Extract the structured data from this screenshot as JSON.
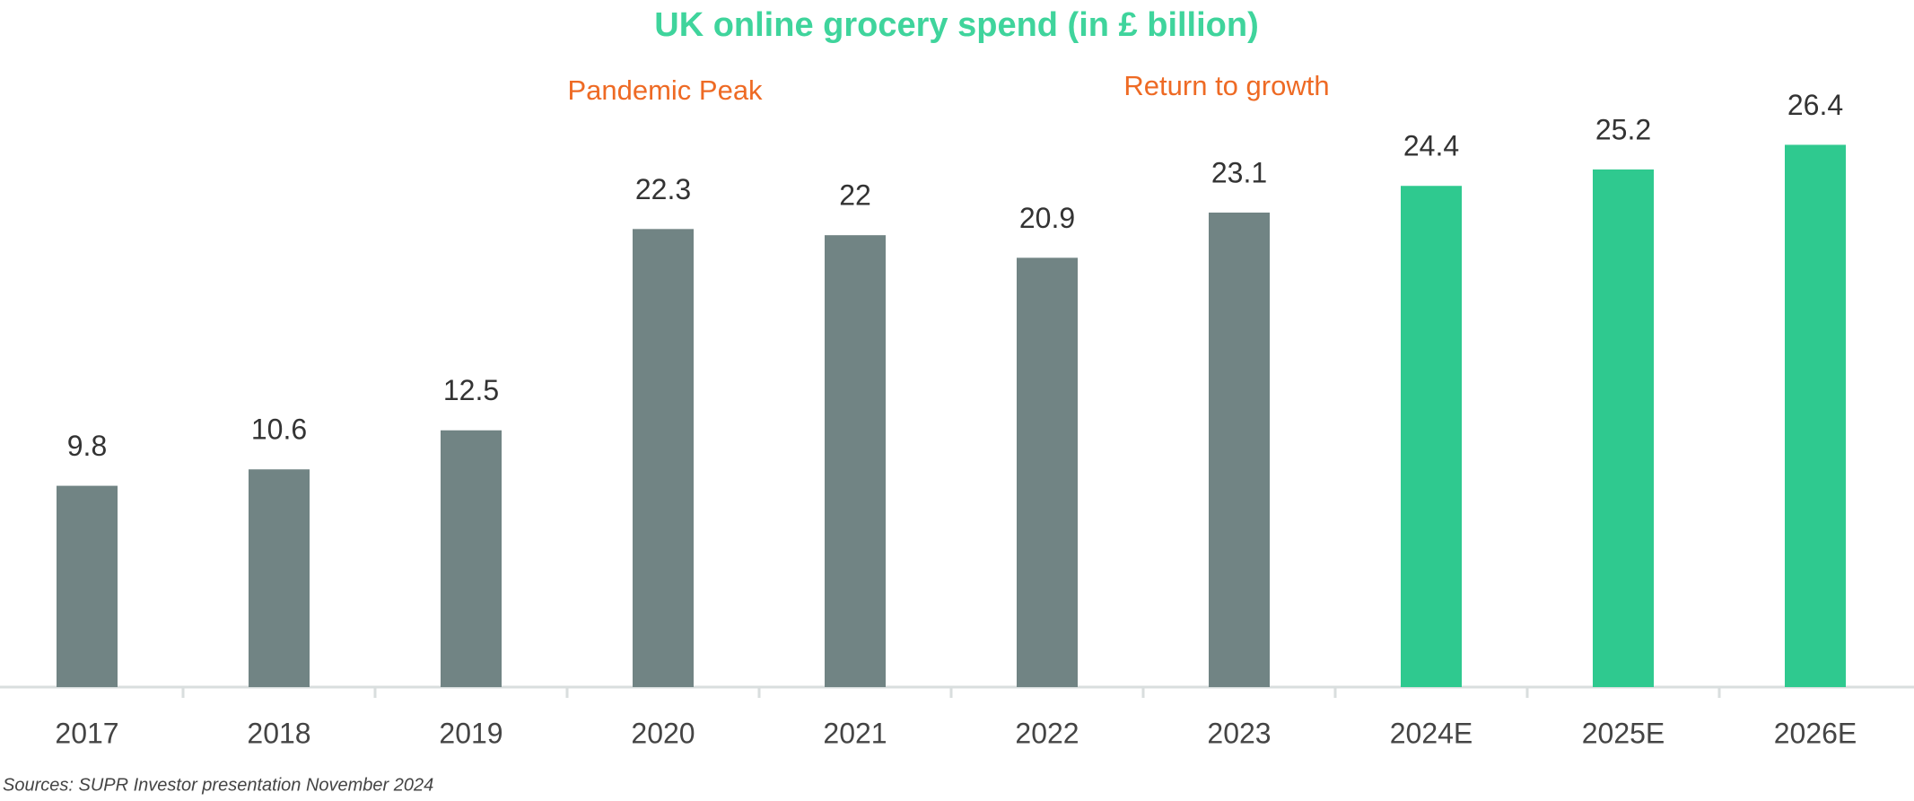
{
  "chart_data": {
    "type": "bar",
    "title": "UK online grocery spend (in £ billion)",
    "categories": [
      "2017",
      "2018",
      "2019",
      "2020",
      "2021",
      "2022",
      "2023",
      "2024E",
      "2025E",
      "2026E"
    ],
    "values": [
      9.8,
      10.6,
      12.5,
      22.3,
      22,
      20.9,
      23.1,
      24.4,
      25.2,
      26.4
    ],
    "colors": [
      "#718484",
      "#718484",
      "#718484",
      "#718484",
      "#718484",
      "#718484",
      "#718484",
      "#2fc98f",
      "#2fc98f",
      "#2fc98f"
    ],
    "ylim": [
      0,
      30
    ],
    "annotations": [
      "Pandemic Peak",
      "Return to growth"
    ],
    "source": "Sources: SUPR Investor presentation November 2024"
  }
}
